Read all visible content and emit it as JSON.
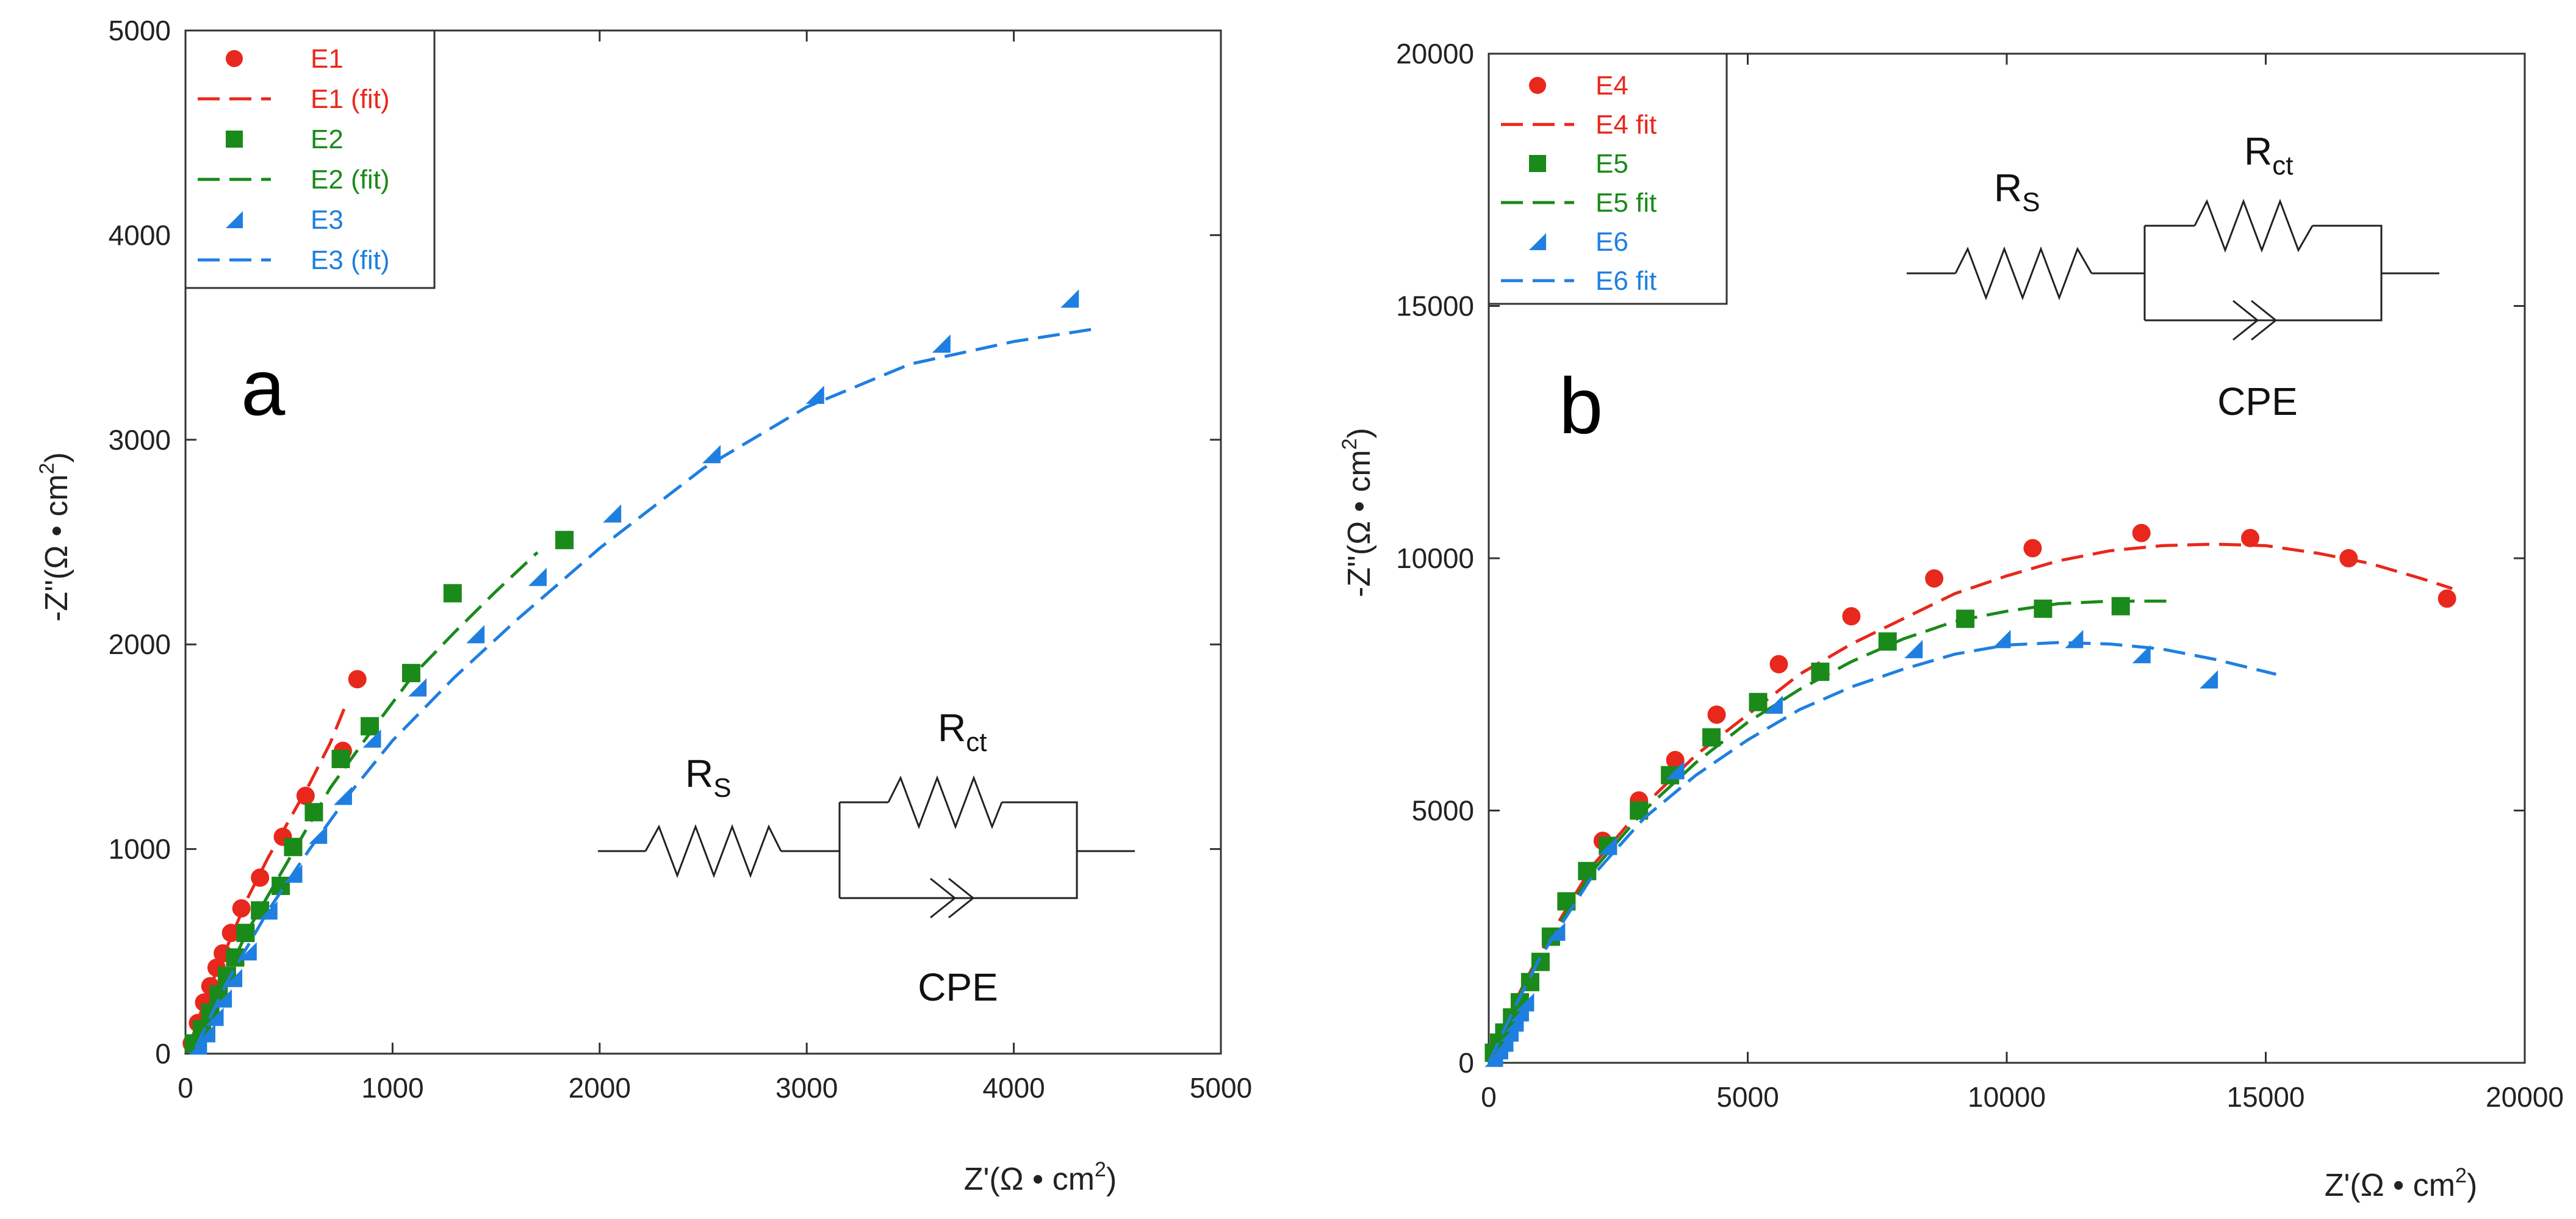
{
  "charts": [
    {
      "id": "a",
      "panel_letter": "a",
      "type": "scatter",
      "xlabel": "Z'(Ω • cm²)",
      "ylabel": "-Z''(Ω • cm²)",
      "xlim": [
        0,
        5000
      ],
      "ylim": [
        0,
        5000
      ],
      "xticks": [
        "0",
        "1000",
        "2000",
        "3000",
        "4000",
        "5000"
      ],
      "yticks": [
        "0",
        "1000",
        "2000",
        "3000",
        "4000",
        "5000"
      ],
      "legend": [
        "E1",
        "E1 (fit)",
        "E2",
        "E2 (fit)",
        "E3",
        "E3 (fit)"
      ],
      "circuit": {
        "rs": "R",
        "rs_sub": "S",
        "rct": "R",
        "rct_sub": "ct",
        "cpe": "CPE"
      }
    },
    {
      "id": "b",
      "panel_letter": "b",
      "type": "scatter",
      "xlabel": "Z'(Ω • cm²)",
      "ylabel": "-Z''(Ω • cm²)",
      "xlim": [
        0,
        20000
      ],
      "ylim": [
        0,
        20000
      ],
      "xticks": [
        "0",
        "5000",
        "10000",
        "15000",
        "20000"
      ],
      "yticks": [
        "0",
        "5000",
        "10000",
        "15000",
        "20000"
      ],
      "legend": [
        "E4",
        "E4 fit",
        "E5",
        "E5 fit",
        "E6",
        "E6 fit"
      ],
      "circuit": {
        "rs": "R",
        "rs_sub": "S",
        "rct": "R",
        "rct_sub": "ct",
        "cpe": "CPE"
      }
    }
  ],
  "colors": {
    "red": "#e8281c",
    "green": "#1a8a1a",
    "blue": "#1f7fe0"
  },
  "chart_data": [
    {
      "type": "scatter",
      "title": "a",
      "xlabel": "Z'(Ω • cm²)",
      "ylabel": "-Z''(Ω • cm²)",
      "xlim": [
        0,
        5000
      ],
      "ylim": [
        0,
        5000
      ],
      "series": [
        {
          "name": "E1",
          "kind": "points",
          "marker": "circle",
          "color": "red",
          "x": [
            30,
            60,
            90,
            120,
            150,
            180,
            220,
            270,
            360,
            470,
            580,
            760,
            830
          ],
          "y": [
            50,
            150,
            250,
            330,
            420,
            490,
            590,
            710,
            860,
            1060,
            1260,
            1480,
            1830
          ]
        },
        {
          "name": "E1 (fit)",
          "kind": "line",
          "color": "red",
          "x": [
            20,
            100,
            200,
            300,
            400,
            500,
            600,
            700,
            780
          ],
          "y": [
            40,
            280,
            520,
            760,
            960,
            1140,
            1320,
            1520,
            1720
          ]
        },
        {
          "name": "E2",
          "kind": "points",
          "marker": "square",
          "color": "green",
          "x": [
            40,
            80,
            120,
            160,
            200,
            240,
            290,
            360,
            460,
            520,
            620,
            750,
            890,
            1090,
            1290,
            1830
          ],
          "y": [
            50,
            120,
            200,
            290,
            380,
            470,
            590,
            700,
            820,
            1010,
            1180,
            1440,
            1600,
            1860,
            2250,
            2510
          ]
        },
        {
          "name": "E2 (fit)",
          "kind": "line",
          "color": "green",
          "x": [
            30,
            150,
            300,
            500,
            700,
            900,
            1100,
            1300,
            1500,
            1700
          ],
          "y": [
            40,
            280,
            600,
            950,
            1300,
            1580,
            1850,
            2060,
            2260,
            2450
          ]
        },
        {
          "name": "E3",
          "kind": "points",
          "marker": "triangle",
          "color": "blue",
          "x": [
            60,
            100,
            140,
            180,
            230,
            300,
            400,
            520,
            640,
            760,
            900,
            1120,
            1400,
            1700,
            2060,
            2540,
            3040,
            3650,
            4270
          ],
          "y": [
            40,
            100,
            180,
            270,
            370,
            500,
            700,
            880,
            1070,
            1260,
            1540,
            1790,
            2050,
            2330,
            2640,
            2930,
            3220,
            3470,
            3690
          ]
        },
        {
          "name": "E3 (fit)",
          "kind": "line",
          "color": "blue",
          "x": [
            50,
            200,
            400,
            600,
            800,
            1000,
            1300,
            1600,
            2000,
            2500,
            3000,
            3500,
            4000,
            4380
          ],
          "y": [
            30,
            350,
            700,
            1000,
            1280,
            1530,
            1840,
            2120,
            2470,
            2860,
            3160,
            3370,
            3480,
            3540
          ]
        }
      ]
    },
    {
      "type": "scatter",
      "title": "b",
      "xlabel": "Z'(Ω • cm²)",
      "ylabel": "-Z''(Ω • cm²)",
      "xlim": [
        0,
        20000
      ],
      "ylim": [
        0,
        20000
      ],
      "series": [
        {
          "name": "E4",
          "kind": "points",
          "marker": "circle",
          "color": "red",
          "x": [
            1500,
            2200,
            2900,
            3600,
            4400,
            5600,
            7000,
            8600,
            10500,
            12600,
            14700,
            16600,
            18500
          ],
          "y": [
            3200,
            4400,
            5200,
            6000,
            6900,
            7900,
            8850,
            9600,
            10200,
            10500,
            10400,
            10000,
            9200
          ]
        },
        {
          "name": "E4 fit",
          "kind": "line",
          "color": "red",
          "x": [
            0,
            500,
            1000,
            2000,
            3000,
            4000,
            5000,
            6000,
            7000,
            8000,
            9000,
            10000,
            11000,
            12000,
            13000,
            14000,
            15000,
            16000,
            17000,
            18000,
            18600
          ],
          "y": [
            0,
            1200,
            2200,
            3900,
            5100,
            6100,
            6900,
            7700,
            8300,
            8800,
            9300,
            9650,
            9950,
            10150,
            10250,
            10280,
            10250,
            10100,
            9900,
            9600,
            9400
          ]
        },
        {
          "name": "E5",
          "kind": "points",
          "marker": "square",
          "color": "green",
          "x": [
            100,
            200,
            300,
            450,
            600,
            800,
            1000,
            1200,
            1500,
            1900,
            2300,
            2900,
            3500,
            4300,
            5200,
            6400,
            7700,
            9200,
            10700,
            12200
          ],
          "y": [
            200,
            400,
            600,
            900,
            1200,
            1600,
            2000,
            2500,
            3200,
            3800,
            4300,
            5000,
            5700,
            6450,
            7150,
            7750,
            8350,
            8800,
            9000,
            9050
          ]
        },
        {
          "name": "E5 fit",
          "kind": "line",
          "color": "green",
          "x": [
            0,
            500,
            1000,
            2000,
            3000,
            4000,
            5000,
            6000,
            7000,
            8000,
            9000,
            10000,
            11000,
            12000,
            13200
          ],
          "y": [
            0,
            1150,
            2150,
            3800,
            5000,
            5950,
            6750,
            7400,
            7950,
            8400,
            8750,
            8950,
            9100,
            9150,
            9150
          ]
        },
        {
          "name": "E6",
          "kind": "points",
          "marker": "triangle",
          "color": "blue",
          "x": [
            100,
            200,
            300,
            400,
            500,
            600,
            700,
            1300,
            2300,
            3600,
            5500,
            8200,
            9900,
            11300,
            12600,
            13900
          ],
          "y": [
            100,
            250,
            400,
            600,
            800,
            1000,
            1200,
            2600,
            4300,
            5800,
            7100,
            8200,
            8400,
            8400,
            8100,
            7600
          ]
        },
        {
          "name": "E6 fit",
          "kind": "line",
          "color": "blue",
          "x": [
            0,
            500,
            1000,
            2000,
            3000,
            4000,
            5000,
            6000,
            7000,
            8000,
            9000,
            10000,
            11000,
            12000,
            13000,
            14000,
            15200
          ],
          "y": [
            0,
            1100,
            2100,
            3700,
            4850,
            5700,
            6400,
            7000,
            7450,
            7800,
            8100,
            8280,
            8330,
            8300,
            8200,
            8000,
            7700
          ]
        }
      ]
    }
  ]
}
